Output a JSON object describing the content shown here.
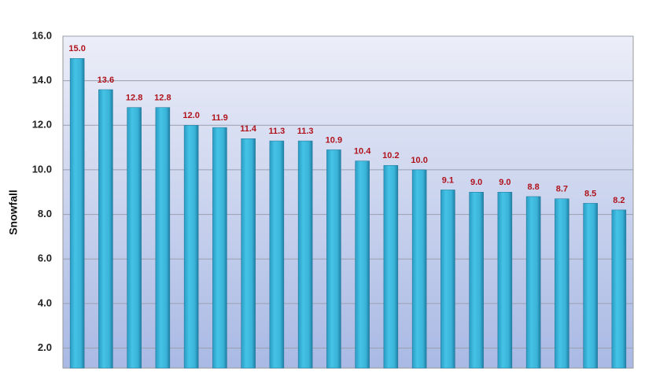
{
  "chart_data": {
    "type": "bar",
    "y_label": "Snowfall",
    "categories": [
      null,
      null,
      null,
      null,
      null,
      null,
      null,
      null,
      null,
      null,
      null,
      null,
      null,
      null,
      null,
      null,
      null,
      null,
      null,
      null
    ],
    "values": [
      15.0,
      13.6,
      12.8,
      12.8,
      12.0,
      11.9,
      11.4,
      11.3,
      11.3,
      10.9,
      10.4,
      10.2,
      10.0,
      9.1,
      9.0,
      9.0,
      8.8,
      8.7,
      8.5,
      8.2
    ],
    "value_labels": [
      "15.0",
      "13.6",
      "12.8",
      "12.8",
      "12.0",
      "11.9",
      "11.4",
      "11.3",
      "11.3",
      "10.9",
      "10.4",
      "10.2",
      "10.0",
      "9.1",
      "9.0",
      "9.0",
      "8.8",
      "8.7",
      "8.5",
      "8.2"
    ],
    "color": "#3bb9de",
    "ylim": [
      1.1,
      16
    ],
    "yticks": [
      {
        "value": 2,
        "label": "2.0"
      },
      {
        "value": 4,
        "label": "4.0"
      },
      {
        "value": 6,
        "label": "6.0"
      },
      {
        "value": 8,
        "label": "8.0"
      },
      {
        "value": 10,
        "label": "10.0"
      },
      {
        "value": 12,
        "label": "12.0"
      },
      {
        "value": 14,
        "label": "14.0"
      },
      {
        "value": 16,
        "label": "16.0"
      }
    ],
    "grid": true
  }
}
